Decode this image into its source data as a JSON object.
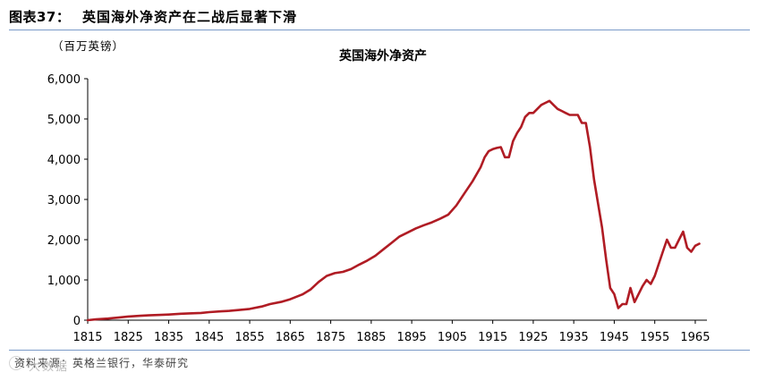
{
  "header": {
    "figure_number": "图表37：",
    "figure_title": "英国海外净资产在二战后显著下滑"
  },
  "unit_label": "（百万英镑）",
  "footer": {
    "source": "资料来源：英格兰银行，华泰研究",
    "watermark": "大数据"
  },
  "colors": {
    "line": "#b01c24",
    "rule": "#7a9ac8"
  },
  "chart_data": {
    "type": "line",
    "title": "英国海外净资产",
    "xlabel": "",
    "ylabel": "（百万英镑）",
    "xlim": [
      1815,
      1967
    ],
    "ylim": [
      0,
      6000
    ],
    "yticks": [
      0,
      1000,
      2000,
      3000,
      4000,
      5000,
      6000
    ],
    "ytick_labels": [
      "0",
      "1,000",
      "2,000",
      "3,000",
      "4,000",
      "5,000",
      "6,000"
    ],
    "xticks": [
      1815,
      1825,
      1835,
      1845,
      1855,
      1865,
      1875,
      1885,
      1895,
      1905,
      1915,
      1925,
      1935,
      1945,
      1955,
      1965
    ],
    "xtick_labels": [
      "1815",
      "1825",
      "1835",
      "1845",
      "1855",
      "1865",
      "1875",
      "1885",
      "1895",
      "1905",
      "1915",
      "1925",
      "1935",
      "1945",
      "1955",
      "1965"
    ],
    "grid": false,
    "legend": "none",
    "series": [
      {
        "x": [
          1815,
          1817,
          1820,
          1822,
          1825,
          1828,
          1830,
          1833,
          1835,
          1838,
          1840,
          1843,
          1845,
          1848,
          1850,
          1853,
          1855,
          1858,
          1860,
          1863,
          1865,
          1868,
          1870,
          1872,
          1874,
          1876,
          1878,
          1880,
          1882,
          1884,
          1886,
          1888,
          1890,
          1892,
          1894,
          1896,
          1898,
          1900,
          1902,
          1904,
          1906,
          1908,
          1910,
          1912,
          1913,
          1914,
          1915,
          1916,
          1917,
          1918,
          1919,
          1920,
          1921,
          1922,
          1923,
          1924,
          1925,
          1926,
          1927,
          1928,
          1929,
          1930,
          1931,
          1932,
          1933,
          1934,
          1935,
          1936,
          1937,
          1938,
          1939,
          1940,
          1941,
          1942,
          1943,
          1944,
          1945,
          1946,
          1947,
          1948,
          1949,
          1950,
          1951,
          1952,
          1953,
          1954,
          1955,
          1956,
          1957,
          1958,
          1959,
          1960,
          1961,
          1962,
          1963,
          1964,
          1965,
          1966
        ],
        "y": [
          0,
          20,
          40,
          60,
          90,
          110,
          120,
          130,
          140,
          160,
          170,
          180,
          200,
          220,
          230,
          260,
          280,
          340,
          400,
          460,
          520,
          640,
          760,
          950,
          1100,
          1170,
          1200,
          1270,
          1380,
          1480,
          1600,
          1760,
          1920,
          2080,
          2180,
          2280,
          2360,
          2430,
          2520,
          2620,
          2850,
          3150,
          3450,
          3800,
          4050,
          4200,
          4250,
          4280,
          4300,
          4050,
          4050,
          4450,
          4650,
          4800,
          5050,
          5150,
          5150,
          5250,
          5350,
          5400,
          5450,
          5350,
          5250,
          5200,
          5150,
          5100,
          5100,
          5100,
          4900,
          4900,
          4300,
          3500,
          2900,
          2300,
          1500,
          800,
          650,
          300,
          400,
          400,
          800,
          450,
          650,
          850,
          1000,
          900,
          1100,
          1400,
          1700,
          2000,
          1800,
          1800,
          2000,
          2200,
          1800,
          1700,
          1850,
          1900
        ]
      }
    ]
  }
}
